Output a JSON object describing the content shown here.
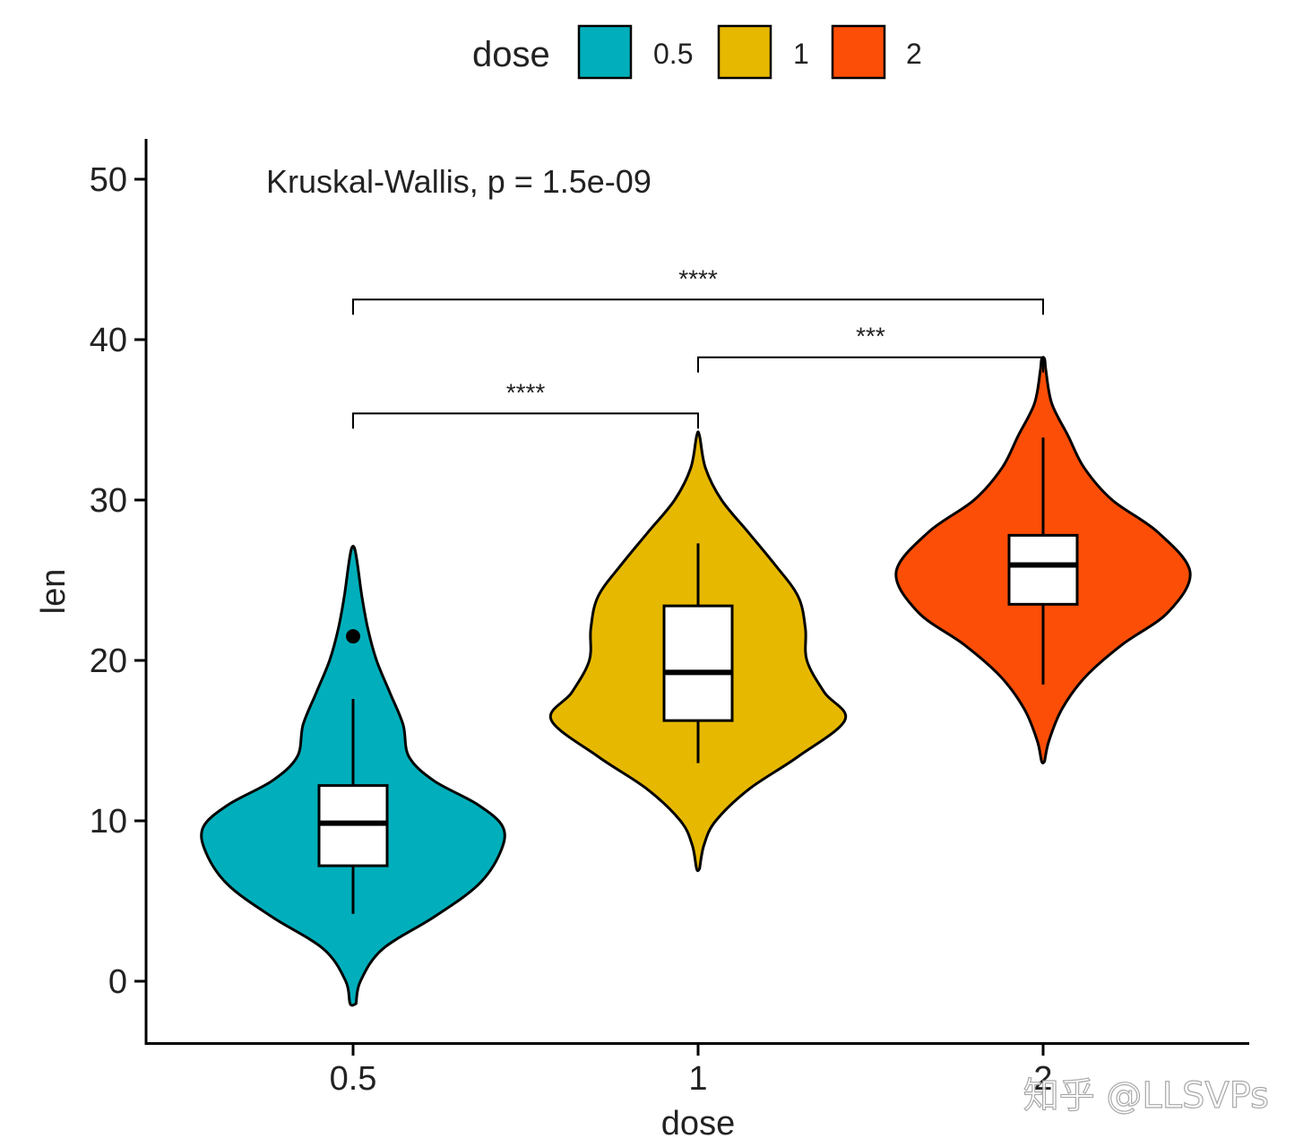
{
  "chart_data": {
    "type": "violin",
    "xlabel": "dose",
    "ylabel": "len",
    "ylim": [
      -4,
      52
    ],
    "yticks": [
      0,
      10,
      20,
      30,
      40,
      50
    ],
    "categories": [
      "0.5",
      "1",
      "2"
    ],
    "legend": {
      "title": "dose",
      "position": "top",
      "items": [
        {
          "label": "0.5",
          "color": "#00AFBB"
        },
        {
          "label": "1",
          "color": "#E7B800"
        },
        {
          "label": "2",
          "color": "#FC4E07"
        }
      ]
    },
    "groups": [
      {
        "name": "0.5",
        "color": "#00AFBB",
        "violin_range": [
          -1.4,
          27.0
        ],
        "density": [
          [
            -1.4,
            0.02
          ],
          [
            0,
            0.05
          ],
          [
            2,
            0.2
          ],
          [
            4,
            0.55
          ],
          [
            6,
            0.85
          ],
          [
            8,
            1.0
          ],
          [
            9.6,
            1.02
          ],
          [
            11,
            0.85
          ],
          [
            12.5,
            0.55
          ],
          [
            14,
            0.38
          ],
          [
            16,
            0.34
          ],
          [
            18,
            0.25
          ],
          [
            20,
            0.16
          ],
          [
            22,
            0.1
          ],
          [
            24,
            0.06
          ],
          [
            26,
            0.03
          ],
          [
            27,
            0.01
          ]
        ],
        "box": {
          "q1": 7.2,
          "median": 9.85,
          "q3": 12.2,
          "whisker_low": 4.2,
          "whisker_high": 17.6
        },
        "outliers": [
          21.5
        ]
      },
      {
        "name": "1",
        "color": "#E7B800",
        "violin_range": [
          7.0,
          34.0
        ],
        "density": [
          [
            7,
            0.01
          ],
          [
            8.5,
            0.04
          ],
          [
            10,
            0.12
          ],
          [
            12,
            0.35
          ],
          [
            14,
            0.68
          ],
          [
            16.3,
            1.0
          ],
          [
            18,
            0.86
          ],
          [
            20,
            0.74
          ],
          [
            22,
            0.73
          ],
          [
            24,
            0.68
          ],
          [
            26,
            0.52
          ],
          [
            28,
            0.34
          ],
          [
            30,
            0.16
          ],
          [
            32,
            0.05
          ],
          [
            34,
            0.01
          ]
        ],
        "box": {
          "q1": 16.25,
          "median": 19.25,
          "q3": 23.4,
          "whisker_low": 13.6,
          "whisker_high": 27.3
        },
        "outliers": []
      },
      {
        "name": "2",
        "color": "#FC4E07",
        "violin_range": [
          13.7,
          38.8
        ],
        "density": [
          [
            13.7,
            0.01
          ],
          [
            15,
            0.04
          ],
          [
            17,
            0.13
          ],
          [
            19,
            0.29
          ],
          [
            21,
            0.54
          ],
          [
            23,
            0.85
          ],
          [
            25.5,
            1.0
          ],
          [
            28,
            0.78
          ],
          [
            30,
            0.47
          ],
          [
            32,
            0.28
          ],
          [
            34,
            0.17
          ],
          [
            36,
            0.06
          ],
          [
            38,
            0.02
          ],
          [
            38.8,
            0.01
          ]
        ],
        "box": {
          "q1": 23.5,
          "median": 25.95,
          "q3": 27.8,
          "whisker_low": 18.5,
          "whisker_high": 33.9
        },
        "outliers": []
      }
    ],
    "annotations": {
      "global_test": "Kruskal-Wallis, p = 1.5e-09",
      "global_test_pos": {
        "x": "0.5",
        "y": 50
      },
      "comparisons": [
        {
          "from": "0.5",
          "to": "1",
          "y": 35.4,
          "label": "****"
        },
        {
          "from": "1",
          "to": "2",
          "y": 38.9,
          "label": "***"
        },
        {
          "from": "0.5",
          "to": "2",
          "y": 42.5,
          "label": "****"
        }
      ]
    },
    "grid": false
  },
  "watermark": "知乎 @LLSVPs"
}
